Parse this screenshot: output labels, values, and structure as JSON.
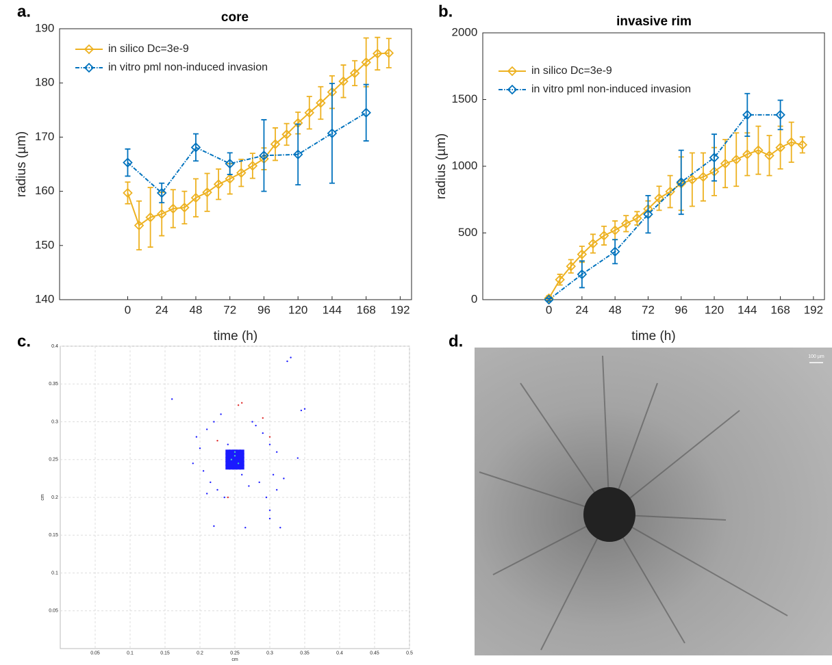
{
  "chart_data": [
    {
      "type": "line",
      "label": "a.",
      "title": "core",
      "xlabel": "time (h)",
      "ylabel": "radius (µm)",
      "xlim": [
        -48,
        200
      ],
      "xticks": [
        0,
        24,
        48,
        72,
        96,
        120,
        144,
        168,
        192
      ],
      "ylim": [
        140,
        190
      ],
      "yticks": [
        140,
        150,
        160,
        170,
        180,
        190
      ],
      "legend": "upper left",
      "series": [
        {
          "name": "in silico Dc=3e-9",
          "color": "#EDB120",
          "linestyle": "solid",
          "x": [
            0,
            8,
            16,
            24,
            32,
            40,
            48,
            56,
            64,
            72,
            80,
            88,
            96,
            104,
            112,
            120,
            128,
            136,
            144,
            152,
            160,
            168,
            176,
            184
          ],
          "values": [
            159.7,
            153.7,
            155.2,
            155.8,
            156.8,
            157.0,
            158.8,
            159.8,
            161.3,
            162.3,
            163.4,
            164.7,
            166.0,
            168.7,
            170.5,
            172.6,
            174.5,
            176.3,
            178.3,
            180.3,
            181.8,
            183.8,
            185.4,
            185.5
          ],
          "errors": [
            2,
            4.5,
            5.5,
            4,
            3.5,
            3,
            3.5,
            3.5,
            2.8,
            2.8,
            2.5,
            2.3,
            2,
            3,
            2,
            2,
            3,
            3,
            3,
            3,
            2.3,
            4.5,
            3,
            2.7
          ]
        },
        {
          "name": "in vitro pml non-induced invasion",
          "color": "#0072BD",
          "linestyle": "dashdot",
          "x": [
            0,
            24,
            48,
            72,
            96,
            120,
            144,
            168
          ],
          "values": [
            165.3,
            159.7,
            168.1,
            165.1,
            166.6,
            166.8,
            170.7,
            174.5
          ],
          "errors": [
            2.5,
            1.8,
            2.5,
            2,
            6.6,
            5.6,
            9.2,
            5.2
          ]
        }
      ]
    },
    {
      "type": "line",
      "label": "b.",
      "title": "invasive rim",
      "xlabel": "time (h)",
      "ylabel": "radius (µm)",
      "xlim": [
        -48,
        200
      ],
      "xticks": [
        0,
        24,
        48,
        72,
        96,
        120,
        144,
        168,
        192
      ],
      "ylim": [
        0,
        2000
      ],
      "yticks": [
        0,
        500,
        1000,
        1500,
        2000
      ],
      "legend": "upper left",
      "series": [
        {
          "name": "in silico Dc=3e-9",
          "color": "#EDB120",
          "linestyle": "solid",
          "x": [
            0,
            8,
            16,
            24,
            32,
            40,
            48,
            56,
            64,
            72,
            80,
            88,
            96,
            104,
            112,
            120,
            128,
            136,
            144,
            152,
            160,
            168,
            176,
            184
          ],
          "values": [
            10,
            150,
            250,
            340,
            420,
            480,
            520,
            570,
            610,
            680,
            760,
            810,
            870,
            900,
            920,
            960,
            1020,
            1050,
            1090,
            1120,
            1080,
            1140,
            1180,
            1160
          ],
          "errors": [
            20,
            40,
            50,
            60,
            70,
            70,
            70,
            60,
            50,
            60,
            90,
            120,
            200,
            200,
            180,
            180,
            180,
            200,
            160,
            180,
            150,
            160,
            150,
            60
          ]
        },
        {
          "name": "in vitro pml non-induced invasion",
          "color": "#0072BD",
          "linestyle": "dashdot",
          "x": [
            0,
            24,
            48,
            72,
            96,
            120,
            144,
            168
          ],
          "values": [
            0,
            190,
            360,
            640,
            880,
            1065,
            1385,
            1385
          ],
          "errors": [
            10,
            100,
            90,
            140,
            240,
            175,
            160,
            110
          ]
        }
      ]
    },
    {
      "type": "scatter",
      "label": "c.",
      "xlabel": "cm",
      "ylabel": "cm",
      "grid": true,
      "xlim": [
        0,
        0.5
      ],
      "xticks": [
        0.05,
        0.1,
        0.15,
        0.2,
        0.25,
        0.3,
        0.35,
        0.4,
        0.45,
        0.5
      ],
      "ylim": [
        0,
        0.4
      ],
      "yticks": [
        0.05,
        0.1,
        0.15,
        0.2,
        0.25,
        0.3,
        0.35,
        0.4
      ],
      "series": [
        {
          "color": "#1a1aff",
          "marker": "square",
          "x": [
            0.24,
            0.245,
            0.25,
            0.255,
            0.26,
            0.24,
            0.245,
            0.25,
            0.255,
            0.26,
            0.24,
            0.245,
            0.25,
            0.255,
            0.26,
            0.24,
            0.245,
            0.25,
            0.255,
            0.26,
            0.24,
            0.245,
            0.25,
            0.255,
            0.26
          ],
          "values": [
            0.24,
            0.24,
            0.24,
            0.24,
            0.24,
            0.245,
            0.245,
            0.245,
            0.245,
            0.245,
            0.25,
            0.25,
            0.25,
            0.25,
            0.25,
            0.255,
            0.255,
            0.255,
            0.255,
            0.255,
            0.26,
            0.26,
            0.26,
            0.26,
            0.26
          ]
        },
        {
          "color": "#2020ff",
          "marker": "dot",
          "x": [
            0.16,
            0.22,
            0.265,
            0.3,
            0.315,
            0.325,
            0.33,
            0.345,
            0.35,
            0.34,
            0.2,
            0.195,
            0.21,
            0.22,
            0.23,
            0.28,
            0.29,
            0.3,
            0.31,
            0.305,
            0.285,
            0.27,
            0.215,
            0.225,
            0.21,
            0.235,
            0.295,
            0.31,
            0.32,
            0.205,
            0.19,
            0.275,
            0.24,
            0.26,
            0.3
          ],
          "values": [
            0.33,
            0.162,
            0.16,
            0.172,
            0.16,
            0.38,
            0.385,
            0.315,
            0.317,
            0.252,
            0.265,
            0.28,
            0.29,
            0.3,
            0.31,
            0.295,
            0.285,
            0.27,
            0.26,
            0.23,
            0.22,
            0.215,
            0.22,
            0.21,
            0.205,
            0.2,
            0.2,
            0.21,
            0.225,
            0.235,
            0.245,
            0.3,
            0.27,
            0.23,
            0.183
          ]
        },
        {
          "color": "#e03030",
          "marker": "dot",
          "x": [
            0.26,
            0.255,
            0.29,
            0.225,
            0.24,
            0.3
          ],
          "values": [
            0.325,
            0.322,
            0.305,
            0.275,
            0.2,
            0.28
          ]
        },
        {
          "color": "#40d0c0",
          "marker": "dot",
          "x": [
            0.245,
            0.25,
            0.255,
            0.25
          ],
          "values": [
            0.25,
            0.255,
            0.245,
            0.26
          ]
        }
      ]
    }
  ],
  "image": {
    "label": "d.",
    "scale_bar": "100 µm"
  }
}
